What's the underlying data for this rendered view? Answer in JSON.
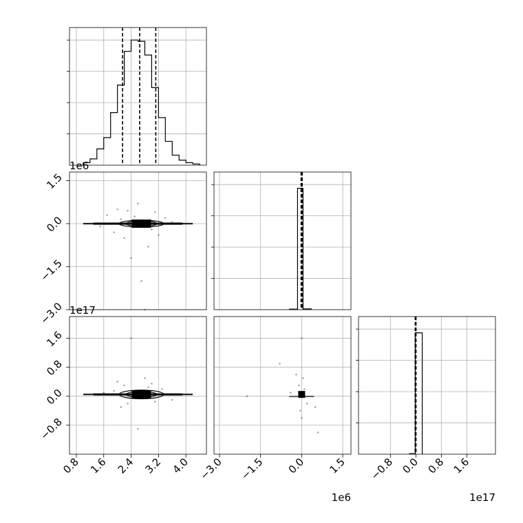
{
  "chart_data": {
    "type": "corner",
    "grid": true,
    "panels": [
      {
        "id": "hist-x",
        "type": "histogram",
        "xlim": [
          0.6,
          4.6
        ],
        "ylim": [
          0,
          1.1
        ],
        "bin_edges": [
          1.0,
          1.2,
          1.4,
          1.6,
          1.8,
          2.0,
          2.2,
          2.4,
          2.6,
          2.8,
          3.0,
          3.2,
          3.4,
          3.6,
          3.8,
          4.0,
          4.2,
          4.4
        ],
        "counts": [
          0.02,
          0.05,
          0.13,
          0.22,
          0.42,
          0.64,
          0.91,
          1.0,
          0.99,
          0.88,
          0.62,
          0.38,
          0.19,
          0.08,
          0.04,
          0.02,
          0.01
        ],
        "quantiles": [
          2.15,
          2.65,
          3.12
        ]
      },
      {
        "id": "hist-y",
        "type": "histogram",
        "xlim": [
          -3.2,
          1.8
        ],
        "ylim": [
          0,
          1.1
        ],
        "bin_edges": [
          -0.45,
          -0.15,
          0.05,
          0.35
        ],
        "counts": [
          0.004,
          0.97,
          0.006
        ],
        "quantiles": [
          -0.02,
          0.0,
          0.02
        ]
      },
      {
        "id": "hist-z",
        "type": "histogram",
        "xlim": [
          -1.8,
          2.5
        ],
        "ylim": [
          0,
          1.1
        ],
        "bin_edges": [
          -0.2,
          -0.02,
          0.2
        ],
        "counts": [
          0.004,
          0.97
        ],
        "quantiles": [
          -0.02,
          -0.005,
          0.005
        ]
      },
      {
        "id": "scatter-x-y",
        "type": "scatter",
        "xlim": [
          0.6,
          4.6
        ],
        "ylim": [
          -3.0,
          1.8
        ],
        "points": [
          [
            2.0,
            0.5
          ],
          [
            2.7,
            -2.0
          ],
          [
            2.4,
            -1.2
          ],
          [
            3.1,
            0.4
          ],
          [
            1.7,
            0.3
          ],
          [
            2.9,
            -0.8
          ],
          [
            2.2,
            -0.5
          ],
          [
            3.4,
            0.2
          ],
          [
            1.9,
            -0.3
          ],
          [
            2.6,
            0.7
          ],
          [
            2.1,
            0.15
          ],
          [
            3.0,
            -0.2
          ],
          [
            2.5,
            0.25
          ],
          [
            1.5,
            -0.1
          ],
          [
            3.6,
            0.05
          ],
          [
            2.8,
            -3.0
          ],
          [
            2.3,
            0.45
          ],
          [
            3.2,
            -0.4
          ]
        ],
        "contour_center": [
          2.7,
          0.0
        ],
        "contour_half_widths": [
          [
            0.65,
            0.12
          ],
          [
            0.45,
            0.08
          ],
          [
            0.25,
            0.05
          ]
        ]
      },
      {
        "id": "scatter-x-z",
        "type": "scatter",
        "xlim": [
          0.6,
          4.6
        ],
        "ylim": [
          -1.6,
          2.2
        ],
        "points": [
          [
            2.2,
            0.3
          ],
          [
            2.9,
            0.25
          ],
          [
            3.3,
            0.2
          ],
          [
            1.9,
            0.15
          ],
          [
            2.6,
            -0.9
          ],
          [
            2.1,
            -0.3
          ],
          [
            3.0,
            0.35
          ],
          [
            2.4,
            1.6
          ],
          [
            1.6,
            0.1
          ],
          [
            3.6,
            -0.1
          ],
          [
            2.8,
            0.5
          ],
          [
            2.3,
            -0.2
          ],
          [
            3.1,
            -0.15
          ],
          [
            2.0,
            0.4
          ]
        ],
        "contour_center": [
          2.7,
          0.05
        ],
        "contour_half_widths": [
          [
            0.65,
            0.12
          ],
          [
            0.45,
            0.08
          ],
          [
            0.25,
            0.05
          ]
        ]
      },
      {
        "id": "scatter-y-z",
        "type": "scatter",
        "xlim": [
          -3.2,
          1.8
        ],
        "ylim": [
          -1.6,
          2.2
        ],
        "points": [
          [
            0.0,
            1.6
          ],
          [
            -0.8,
            0.9
          ],
          [
            0.05,
            0.5
          ],
          [
            -0.1,
            0.3
          ],
          [
            0.5,
            -0.3
          ],
          [
            0.6,
            -1.0
          ],
          [
            -2.0,
            0.0
          ],
          [
            -0.4,
            0.1
          ],
          [
            0.2,
            -0.2
          ],
          [
            -0.2,
            0.6
          ],
          [
            0.1,
            0.2
          ],
          [
            0.0,
            -0.6
          ],
          [
            -0.05,
            -0.4
          ]
        ],
        "marker_center": [
          0.0,
          0.05
        ]
      }
    ],
    "x_axes": {
      "col0": {
        "ticks": [
          0.8,
          1.6,
          2.4,
          3.2,
          4.0
        ],
        "tick_labels": [
          "0.8",
          "1.6",
          "2.4",
          "3.2",
          "4.0"
        ]
      },
      "col1": {
        "ticks": [
          -3.0,
          -1.5,
          0.0,
          1.5
        ],
        "tick_labels": [
          "−3.0",
          "−1.5",
          "0.0",
          "1.5"
        ],
        "offset": "1e6"
      },
      "col2": {
        "ticks": [
          -0.8,
          0.0,
          0.8,
          1.6
        ],
        "tick_labels": [
          "−0.8",
          "0.0",
          "0.8",
          "1.6"
        ],
        "offset": "1e17"
      }
    },
    "y_axes": {
      "row1": {
        "ticks": [
          1.5,
          0.0,
          -1.5,
          -3.0
        ],
        "tick_labels": [
          "1.5",
          "0.0",
          "−1.5",
          "−3.0"
        ],
        "offset": "1e6"
      },
      "row2": {
        "ticks": [
          1.6,
          0.8,
          0.0,
          -0.8
        ],
        "tick_labels": [
          "1.6",
          "0.8",
          "0.0",
          "−0.8"
        ],
        "offset": "1e17"
      }
    }
  }
}
